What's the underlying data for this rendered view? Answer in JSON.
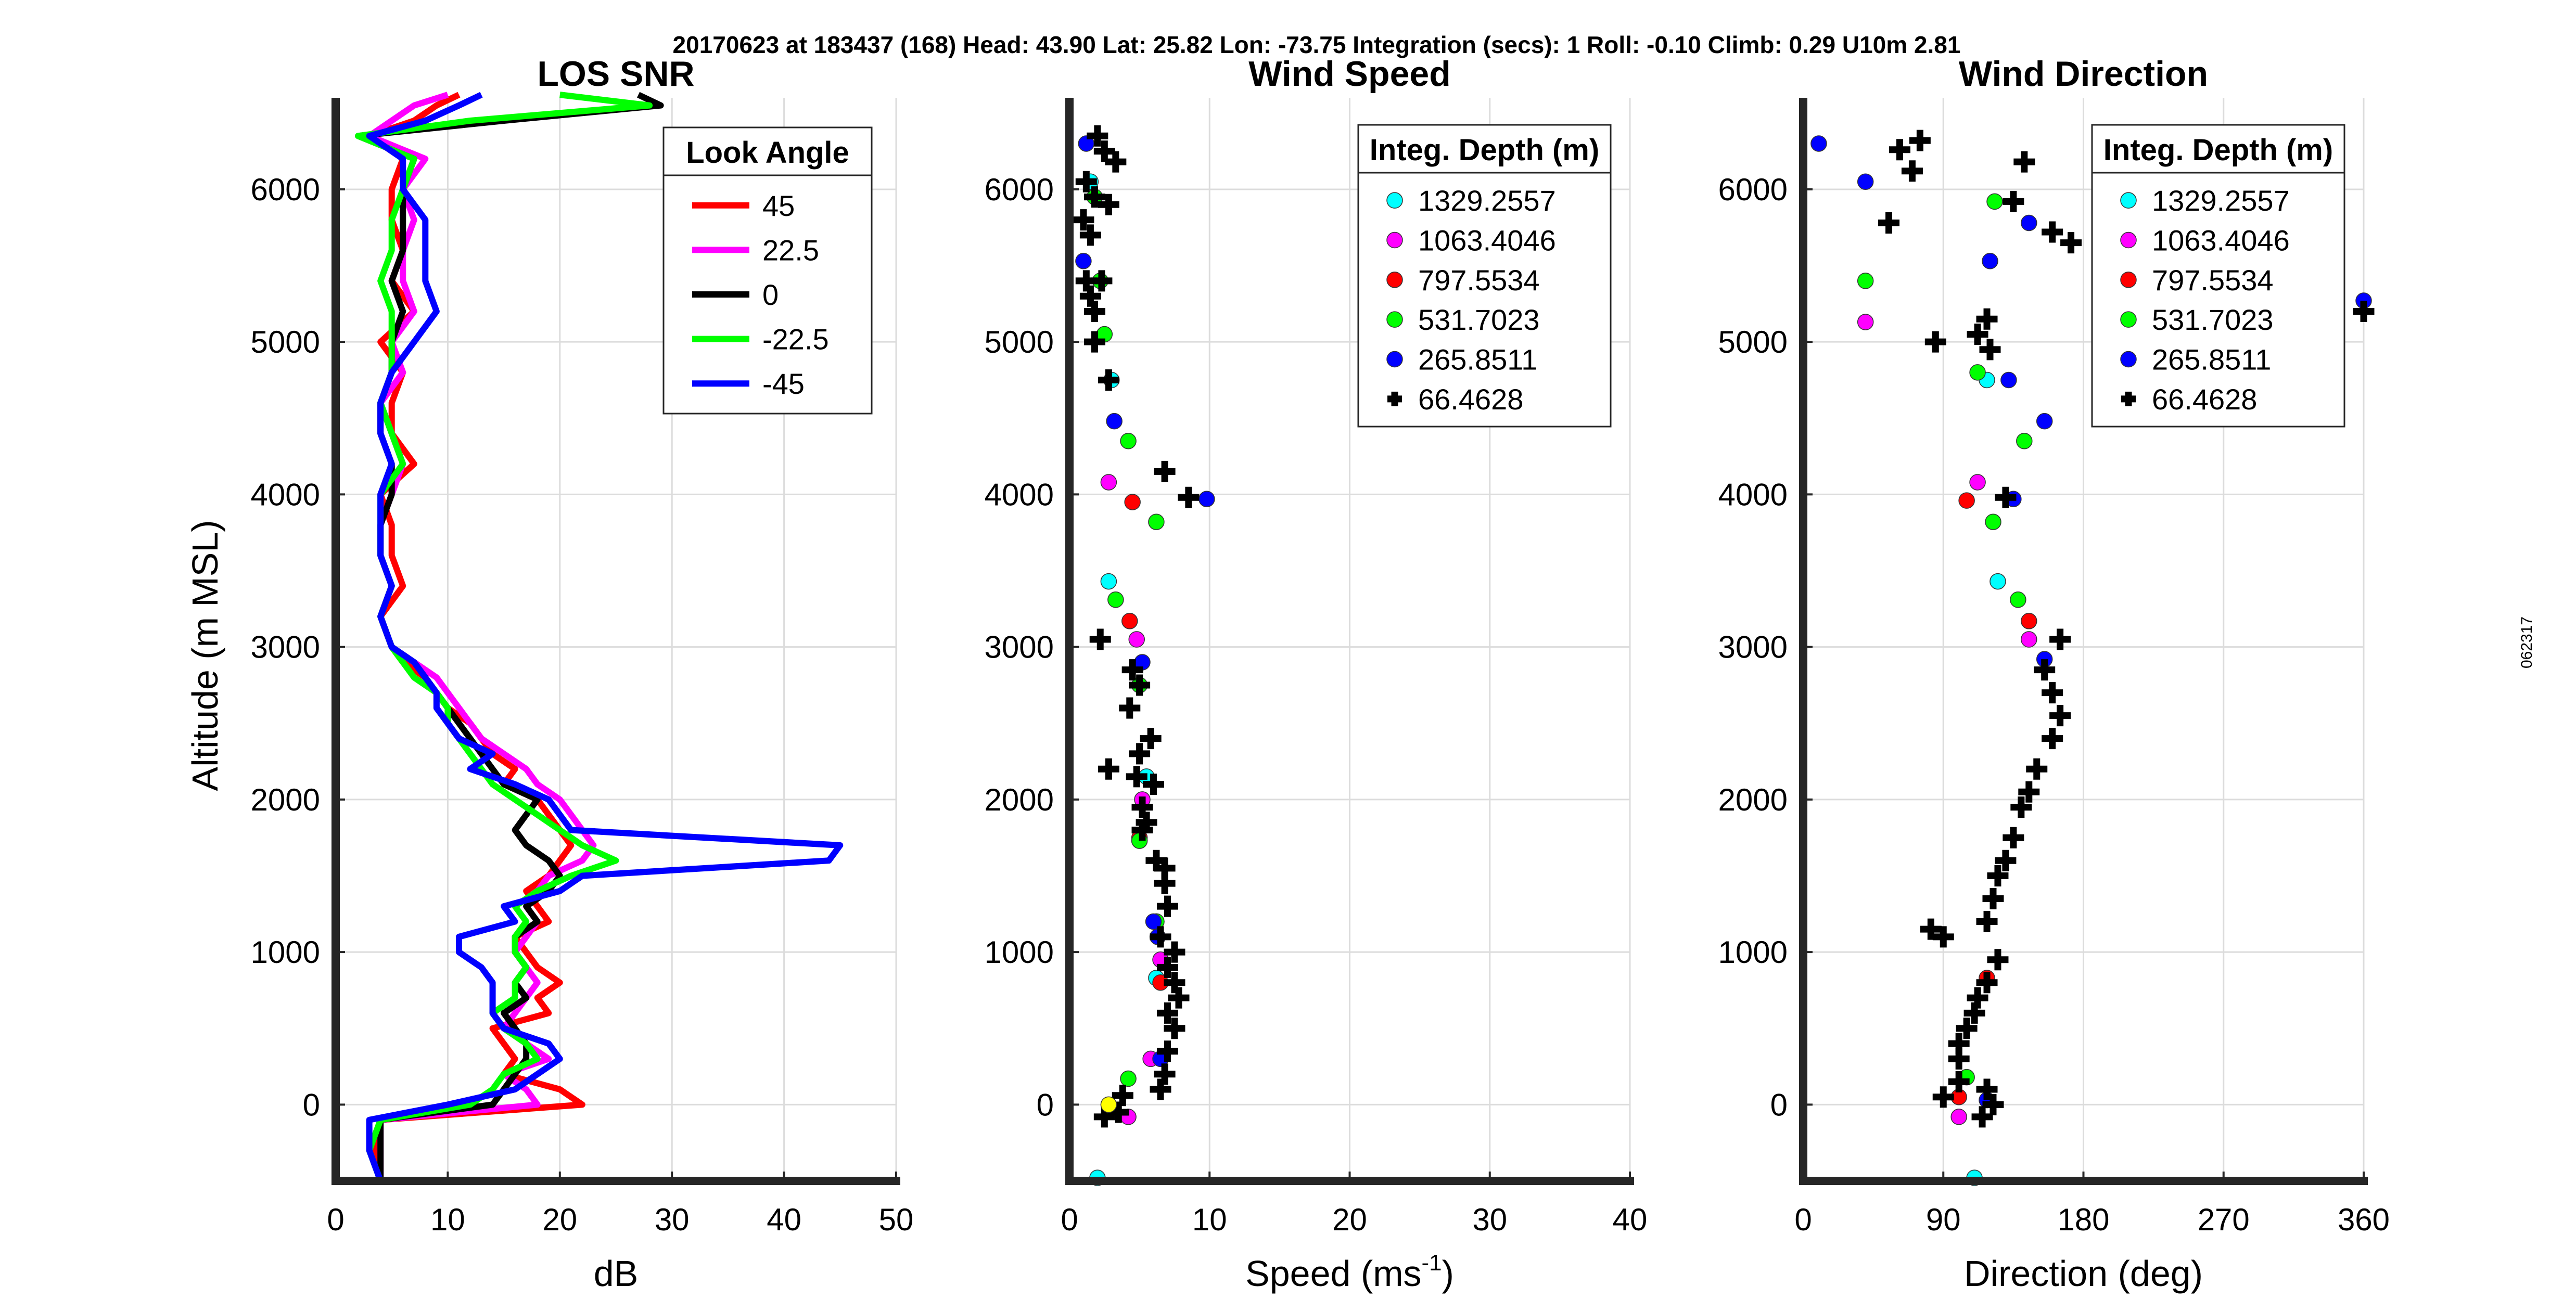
{
  "header": {
    "text": "20170623 at 183437 (168)  Head: 43.90  Lat: 25.82  Lon: -73.75  Integration (secs): 1  Roll: -0.10  Climb: 0.29  U10m 2.81"
  },
  "side_label": "062317",
  "y_axis_label": "Altitude (m MSL)",
  "chart_data": [
    {
      "type": "line",
      "title": "LOS SNR",
      "xlabel": "dB",
      "ylabel": "Altitude (m MSL)",
      "xlim": [
        0,
        50
      ],
      "ylim": [
        -500,
        6600
      ],
      "xticks": [
        0,
        10,
        20,
        30,
        40,
        50
      ],
      "yticks": [
        0,
        1000,
        2000,
        3000,
        4000,
        5000,
        6000
      ],
      "grid": true,
      "legend": {
        "title": "Look Angle",
        "position": "top-right"
      },
      "altitudes": [
        -500,
        -300,
        -100,
        0,
        100,
        200,
        300,
        400,
        500,
        600,
        700,
        800,
        900,
        1000,
        1100,
        1200,
        1300,
        1400,
        1500,
        1600,
        1700,
        1800,
        1900,
        2000,
        2100,
        2200,
        2300,
        2400,
        2500,
        2600,
        2700,
        2800,
        2900,
        3000,
        3200,
        3400,
        3600,
        3800,
        4000,
        4200,
        4400,
        4600,
        4800,
        5000,
        5200,
        5400,
        5600,
        5800,
        6000,
        6200,
        6350,
        6450,
        6550,
        6620
      ],
      "series": [
        {
          "name": "45",
          "color": "#ff0000",
          "values": [
            4,
            3.5,
            4,
            22,
            20,
            15,
            16,
            15,
            14,
            19,
            18,
            20,
            18,
            17,
            16,
            19,
            18,
            17,
            19,
            20,
            21,
            20,
            19,
            18,
            15,
            16,
            14,
            13,
            12,
            10,
            9,
            8,
            6,
            5,
            4,
            6,
            5,
            5,
            4,
            7,
            5,
            5,
            6,
            4,
            7,
            5,
            6,
            5,
            5,
            6,
            3,
            7,
            9,
            11
          ]
        },
        {
          "name": "22.5",
          "color": "#ff00ff",
          "values": [
            4,
            4,
            4,
            18,
            17,
            15,
            19,
            17,
            15,
            16,
            17,
            18,
            17,
            16,
            17,
            18,
            17,
            18,
            19,
            22,
            23,
            22,
            21,
            20,
            18,
            17,
            15,
            13,
            12,
            11,
            10,
            9,
            7,
            5,
            4,
            5,
            4,
            4,
            5,
            6,
            5,
            4,
            6,
            5,
            7,
            6,
            6,
            7,
            6,
            8,
            3,
            5,
            7,
            10
          ]
        },
        {
          "name": "0",
          "color": "#000000",
          "values": [
            4,
            4,
            4,
            14,
            15,
            16,
            17,
            17,
            16,
            15,
            17,
            16,
            17,
            16,
            16,
            18,
            17,
            19,
            20,
            19,
            17,
            16,
            17,
            18,
            15,
            14,
            13,
            12,
            11,
            10,
            9,
            8,
            7,
            5,
            4,
            5,
            4,
            4,
            5,
            5,
            4,
            4,
            5,
            5,
            6,
            5,
            6,
            6,
            6,
            7,
            2,
            15,
            29,
            27
          ]
        },
        {
          "name": "-22.5",
          "color": "#00ff00",
          "values": [
            4,
            3,
            4,
            12,
            14,
            15,
            18,
            17,
            15,
            14,
            16,
            16,
            17,
            16,
            16,
            17,
            16,
            18,
            21,
            25,
            22,
            20,
            18,
            16,
            14,
            13,
            12,
            11,
            10,
            10,
            9,
            7,
            6,
            5,
            4,
            5,
            4,
            4,
            4,
            6,
            5,
            4,
            5,
            5,
            5,
            4,
            5,
            5,
            6,
            7,
            2,
            12,
            28,
            20
          ]
        },
        {
          "name": "-45",
          "color": "#0000ff",
          "values": [
            4,
            3,
            3,
            10,
            16,
            18,
            20,
            19,
            15,
            14,
            14,
            14,
            13,
            11,
            11,
            16,
            15,
            20,
            22,
            44,
            45,
            21,
            20,
            19,
            16,
            12,
            14,
            11,
            10,
            9,
            9,
            8,
            7,
            5,
            4,
            5,
            4,
            4,
            4,
            5,
            4,
            4,
            5,
            7,
            9,
            8,
            8,
            8,
            6,
            6,
            3,
            8,
            11,
            13
          ]
        }
      ]
    },
    {
      "type": "scatter",
      "title": "Wind Speed",
      "xlabel": "Speed (ms",
      "xlabel_superscript": "-1",
      "xlabel_suffix": ")",
      "xlim": [
        0,
        40
      ],
      "ylim": [
        -500,
        6600
      ],
      "xticks": [
        0,
        10,
        20,
        30,
        40
      ],
      "yticks": [
        0,
        1000,
        2000,
        3000,
        4000,
        5000,
        6000
      ],
      "grid": true,
      "legend": {
        "title": "Integ. Depth (m)",
        "position": "top-right"
      },
      "series": [
        {
          "name": "1329.2557",
          "color": "#00ffff",
          "marker": "circle",
          "points": [
            [
              2,
              -480
            ],
            [
              3,
              4750
            ],
            [
              2.8,
              3430
            ],
            [
              5.5,
              2150
            ],
            [
              6.2,
              830
            ],
            [
              1.5,
              6050
            ]
          ]
        },
        {
          "name": "1063.4046",
          "color": "#ff00ff",
          "marker": "circle",
          "points": [
            [
              4.2,
              -80
            ],
            [
              2.8,
              4080
            ],
            [
              4.8,
              3050
            ],
            [
              5.2,
              2000
            ],
            [
              6.5,
              950
            ],
            [
              5.8,
              300
            ]
          ]
        },
        {
          "name": "797.5534",
          "color": "#ff0000",
          "marker": "circle",
          "points": [
            [
              4.5,
              3950
            ],
            [
              4.3,
              3170
            ],
            [
              5,
              1750
            ],
            [
              6.2,
              1200
            ],
            [
              6.5,
              800
            ]
          ]
        },
        {
          "name": "531.7023",
          "color": "#00ff00",
          "marker": "circle",
          "points": [
            [
              4.2,
              170
            ],
            [
              6.2,
              3820
            ],
            [
              4.2,
              4350
            ],
            [
              3.3,
              3310
            ],
            [
              5,
              2750
            ],
            [
              5,
              1730
            ],
            [
              6.2,
              1200
            ],
            [
              1.8,
              5950
            ],
            [
              2.2,
              5400
            ],
            [
              2.5,
              5050
            ]
          ]
        },
        {
          "name": "265.8511",
          "color": "#0000ff",
          "marker": "circle",
          "points": [
            [
              9.8,
              3970
            ],
            [
              3.2,
              4480
            ],
            [
              5.2,
              2900
            ],
            [
              6,
              1200
            ],
            [
              6.3,
              1100
            ],
            [
              6.5,
              300
            ],
            [
              1,
              5530
            ],
            [
              1.2,
              6300
            ]
          ]
        },
        {
          "name": "66.4628",
          "color": "#000000",
          "marker": "plus",
          "points": [
            [
              2,
              6350
            ],
            [
              2.5,
              6250
            ],
            [
              3.3,
              6180
            ],
            [
              1.2,
              6050
            ],
            [
              1.8,
              5950
            ],
            [
              2.8,
              5900
            ],
            [
              1,
              5800
            ],
            [
              1.5,
              5700
            ],
            [
              1.2,
              5400
            ],
            [
              2.3,
              5400
            ],
            [
              1.5,
              5300
            ],
            [
              1.8,
              5200
            ],
            [
              1.8,
              5000
            ],
            [
              2.8,
              4750
            ],
            [
              8.5,
              3980
            ],
            [
              6.8,
              4150
            ],
            [
              2.2,
              3050
            ],
            [
              4.5,
              2850
            ],
            [
              5,
              2750
            ],
            [
              4.3,
              2600
            ],
            [
              5.8,
              2400
            ],
            [
              5,
              2300
            ],
            [
              2.8,
              2200
            ],
            [
              4.8,
              2150
            ],
            [
              6,
              2100
            ],
            [
              5.2,
              1950
            ],
            [
              5.5,
              1850
            ],
            [
              5.2,
              1800
            ],
            [
              6.2,
              1600
            ],
            [
              6.8,
              1550
            ],
            [
              6.8,
              1450
            ],
            [
              7,
              1300
            ],
            [
              6.5,
              1100
            ],
            [
              7.5,
              1000
            ],
            [
              7,
              900
            ],
            [
              7.5,
              800
            ],
            [
              7.8,
              700
            ],
            [
              7,
              600
            ],
            [
              7.5,
              500
            ],
            [
              7,
              350
            ],
            [
              6.8,
              200
            ],
            [
              6.5,
              100
            ],
            [
              3.8,
              60
            ],
            [
              3.5,
              -50
            ],
            [
              2.5,
              -80
            ]
          ]
        },
        {
          "name": "",
          "color": "#ffff00",
          "marker": "circle",
          "points": [
            [
              2.8,
              0
            ]
          ]
        }
      ]
    },
    {
      "type": "scatter",
      "title": "Wind Direction",
      "xlabel": "Direction (deg)",
      "xlim": [
        0,
        360
      ],
      "ylim": [
        -500,
        6600
      ],
      "xticks": [
        0,
        90,
        180,
        270,
        360
      ],
      "yticks": [
        0,
        1000,
        2000,
        3000,
        4000,
        5000,
        6000
      ],
      "grid": true,
      "legend": {
        "title": "Integ. Depth (m)",
        "position": "top-right"
      },
      "series": [
        {
          "name": "1329.2557",
          "color": "#00ffff",
          "marker": "circle",
          "points": [
            [
              110,
              -480
            ],
            [
              118,
              4750
            ],
            [
              125,
              3430
            ]
          ]
        },
        {
          "name": "1063.4046",
          "color": "#ff00ff",
          "marker": "circle",
          "points": [
            [
              40,
              5130
            ],
            [
              112,
              4080
            ],
            [
              145,
              3050
            ],
            [
              100,
              -80
            ]
          ]
        },
        {
          "name": "797.5534",
          "color": "#ff0000",
          "marker": "circle",
          "points": [
            [
              105,
              3960
            ],
            [
              145,
              3170
            ],
            [
              100,
              50
            ],
            [
              118,
              830
            ]
          ]
        },
        {
          "name": "531.7023",
          "color": "#00ff00",
          "marker": "circle",
          "points": [
            [
              40,
              5400
            ],
            [
              123,
              5920
            ],
            [
              112,
              4800
            ],
            [
              142,
              4350
            ],
            [
              122,
              3820
            ],
            [
              138,
              3310
            ],
            [
              105,
              180
            ]
          ]
        },
        {
          "name": "265.8511",
          "color": "#0000ff",
          "marker": "circle",
          "points": [
            [
              10,
              6300
            ],
            [
              40,
              6050
            ],
            [
              120,
              5530
            ],
            [
              145,
              5780
            ],
            [
              132,
              4750
            ],
            [
              155,
              4480
            ],
            [
              135,
              3970
            ],
            [
              155,
              2920
            ],
            [
              360,
              5270
            ],
            [
              118,
              30
            ]
          ]
        },
        {
          "name": "66.4628",
          "color": "#000000",
          "marker": "plus",
          "points": [
            [
              62,
              6260
            ],
            [
              75,
              6320
            ],
            [
              70,
              6120
            ],
            [
              142,
              6180
            ],
            [
              135,
              5920
            ],
            [
              160,
              5720
            ],
            [
              172,
              5650
            ],
            [
              55,
              5780
            ],
            [
              118,
              5150
            ],
            [
              112,
              5050
            ],
            [
              85,
              5000
            ],
            [
              120,
              4950
            ],
            [
              130,
              3980
            ],
            [
              165,
              3050
            ],
            [
              155,
              2850
            ],
            [
              160,
              2700
            ],
            [
              165,
              2550
            ],
            [
              160,
              2400
            ],
            [
              150,
              2200
            ],
            [
              145,
              2050
            ],
            [
              140,
              1950
            ],
            [
              135,
              1750
            ],
            [
              130,
              1600
            ],
            [
              125,
              1500
            ],
            [
              122,
              1350
            ],
            [
              118,
              1200
            ],
            [
              82,
              1150
            ],
            [
              90,
              1100
            ],
            [
              125,
              950
            ],
            [
              118,
              800
            ],
            [
              112,
              700
            ],
            [
              110,
              600
            ],
            [
              105,
              500
            ],
            [
              100,
              400
            ],
            [
              100,
              300
            ],
            [
              100,
              150
            ],
            [
              118,
              100
            ],
            [
              90,
              50
            ],
            [
              122,
              0
            ],
            [
              115,
              -80
            ],
            [
              360,
              5200
            ]
          ]
        }
      ]
    }
  ]
}
